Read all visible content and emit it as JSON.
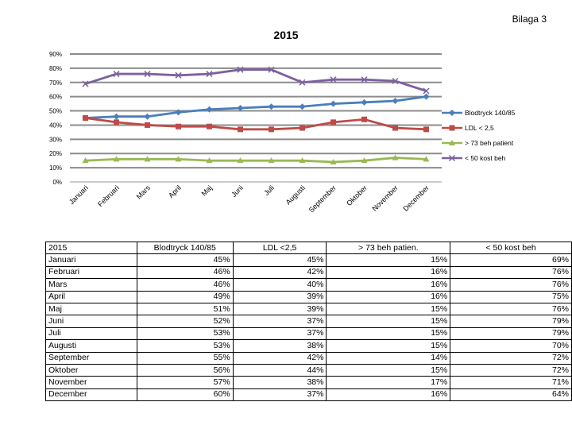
{
  "header": {
    "bilaga": "Bilaga 3"
  },
  "chart_data": {
    "type": "line",
    "title": "2015",
    "categories": [
      "Januari",
      "Februari",
      "Mars",
      "April",
      "Maj",
      "Juni",
      "Juli",
      "Augusti",
      "September",
      "Oktober",
      "November",
      "December"
    ],
    "ylim": [
      0,
      90
    ],
    "yticks": [
      "0%",
      "10%",
      "20%",
      "30%",
      "40%",
      "50%",
      "60%",
      "70%",
      "80%",
      "90%"
    ],
    "legend_position": "right",
    "grid": true,
    "series": [
      {
        "name": "Blodtryck 140/85",
        "color": "#4a7ebb",
        "marker": "diamond",
        "values": [
          45,
          46,
          46,
          49,
          51,
          52,
          53,
          53,
          55,
          56,
          57,
          60
        ]
      },
      {
        "name": "LDL < 2,5",
        "color": "#be4b48",
        "marker": "square",
        "values": [
          45,
          42,
          40,
          39,
          39,
          37,
          37,
          38,
          42,
          44,
          38,
          37
        ]
      },
      {
        "name": "> 73 beh patient",
        "color": "#98b954",
        "marker": "triangle",
        "values": [
          15,
          16,
          16,
          16,
          15,
          15,
          15,
          15,
          14,
          15,
          17,
          16
        ]
      },
      {
        "name": "< 50 kost beh",
        "color": "#7d60a0",
        "marker": "x",
        "values": [
          69,
          76,
          76,
          75,
          76,
          79,
          79,
          70,
          72,
          72,
          71,
          64
        ]
      }
    ]
  },
  "table": {
    "headers": [
      "2015",
      "Blodtryck 140/85",
      "LDL <2,5",
      "> 73 beh patien.",
      "< 50 kost beh"
    ],
    "rows": [
      [
        "Januari",
        "45%",
        "45%",
        "15%",
        "69%"
      ],
      [
        "Februari",
        "46%",
        "42%",
        "16%",
        "76%"
      ],
      [
        "Mars",
        "46%",
        "40%",
        "16%",
        "76%"
      ],
      [
        "April",
        "49%",
        "39%",
        "16%",
        "75%"
      ],
      [
        "Maj",
        "51%",
        "39%",
        "15%",
        "76%"
      ],
      [
        "Juni",
        "52%",
        "37%",
        "15%",
        "79%"
      ],
      [
        "Juli",
        "53%",
        "37%",
        "15%",
        "79%"
      ],
      [
        "Augusti",
        "53%",
        "38%",
        "15%",
        "70%"
      ],
      [
        "September",
        "55%",
        "42%",
        "14%",
        "72%"
      ],
      [
        "Oktober",
        "56%",
        "44%",
        "15%",
        "72%"
      ],
      [
        "November",
        "57%",
        "38%",
        "17%",
        "71%"
      ],
      [
        "December",
        "60%",
        "37%",
        "16%",
        "64%"
      ]
    ]
  }
}
